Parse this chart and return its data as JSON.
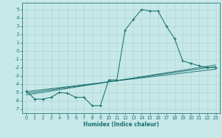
{
  "xlabel": "Humidex (Indice chaleur)",
  "ylabel": "",
  "bg_color": "#c8e8e8",
  "line_color": "#1a7070",
  "xlim": [
    -0.5,
    23.5
  ],
  "ylim": [
    -7.5,
    5.8
  ],
  "xticks": [
    0,
    1,
    2,
    3,
    4,
    5,
    6,
    7,
    8,
    9,
    10,
    11,
    12,
    13,
    14,
    15,
    16,
    17,
    18,
    19,
    20,
    21,
    22,
    23
  ],
  "yticks": [
    -7,
    -6,
    -5,
    -4,
    -3,
    -2,
    -1,
    0,
    1,
    2,
    3,
    4,
    5
  ],
  "main_x": [
    0,
    1,
    2,
    3,
    4,
    5,
    6,
    7,
    8,
    9,
    10,
    11,
    12,
    13,
    14,
    15,
    16,
    17,
    18,
    19,
    20,
    21,
    22,
    23
  ],
  "main_y": [
    -4.8,
    -5.8,
    -5.8,
    -5.6,
    -5.0,
    -5.1,
    -5.6,
    -5.6,
    -6.6,
    -6.6,
    -3.5,
    -3.5,
    2.5,
    3.8,
    5.0,
    4.8,
    4.8,
    3.0,
    1.5,
    -1.2,
    -1.5,
    -1.8,
    -2.0,
    -2.0
  ],
  "line1_x": [
    0,
    23
  ],
  "line1_y": [
    -5.3,
    -1.7
  ],
  "line2_x": [
    0,
    23
  ],
  "line2_y": [
    -5.1,
    -1.9
  ],
  "line3_x": [
    0,
    23
  ],
  "line3_y": [
    -4.9,
    -2.2
  ],
  "grid_color": "#aad4d4",
  "xlabel_fontsize": 5.5,
  "tick_fontsize": 4.8
}
